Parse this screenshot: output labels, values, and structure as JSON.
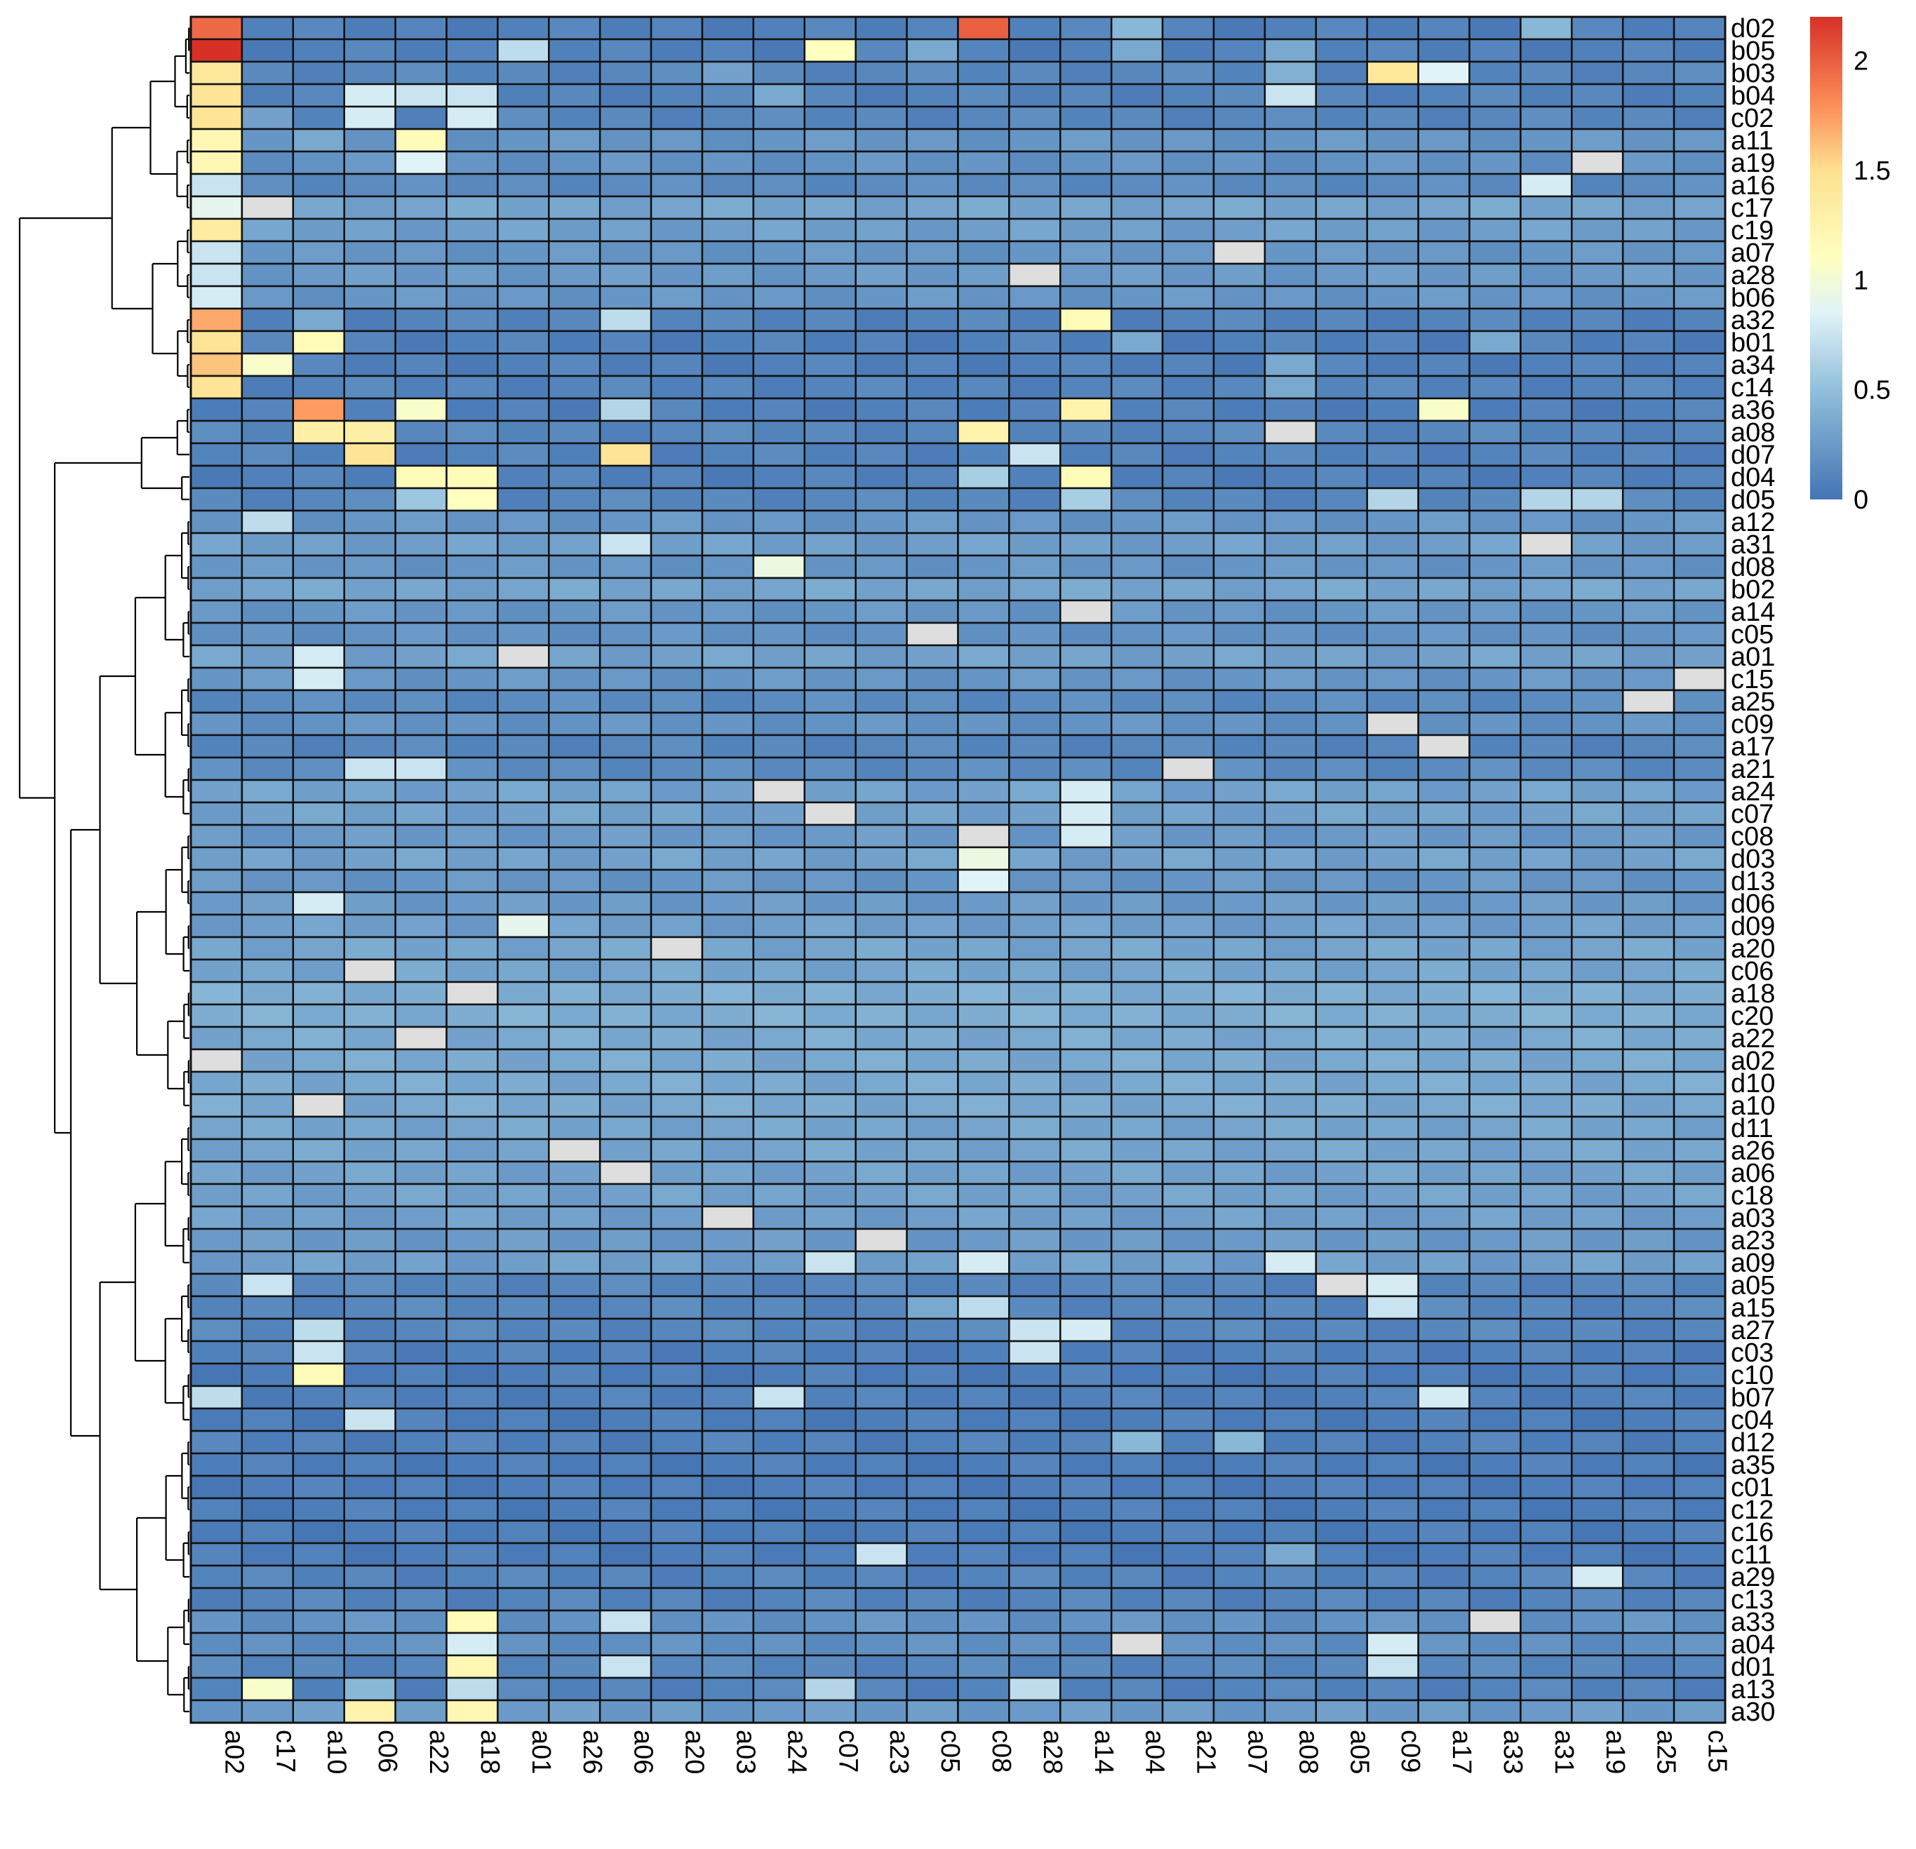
{
  "chart_data": {
    "type": "heatmap",
    "title": "",
    "xlabel": "",
    "ylabel": "",
    "columns": [
      "a02",
      "c17",
      "a10",
      "c06",
      "a22",
      "a18",
      "a01",
      "a26",
      "a06",
      "a20",
      "a03",
      "a24",
      "c07",
      "a23",
      "c05",
      "c08",
      "a28",
      "a14",
      "a04",
      "a21",
      "a07",
      "a08",
      "a05",
      "c09",
      "a17",
      "a33",
      "a31",
      "a19",
      "a25",
      "c15"
    ],
    "rows": [
      "d02",
      "b05",
      "b03",
      "b04",
      "c02",
      "a11",
      "a19",
      "a16",
      "c17",
      "c19",
      "a07",
      "a28",
      "b06",
      "a32",
      "b01",
      "a34",
      "c14",
      "a36",
      "a08",
      "d07",
      "d04",
      "d05",
      "a12",
      "a31",
      "d08",
      "b02",
      "a14",
      "c05",
      "a01",
      "c15",
      "a25",
      "c09",
      "a17",
      "a21",
      "a24",
      "c07",
      "c08",
      "d03",
      "d13",
      "d06",
      "d09",
      "a20",
      "c06",
      "a18",
      "c20",
      "a22",
      "a02",
      "d10",
      "a10",
      "d11",
      "a26",
      "a06",
      "c18",
      "a03",
      "a23",
      "a09",
      "a05",
      "a15",
      "a27",
      "c03",
      "c10",
      "b07",
      "c04",
      "d12",
      "a35",
      "c01",
      "c12",
      "c16",
      "c11",
      "a29",
      "c13",
      "a33",
      "a04",
      "d01",
      "a13",
      "a30"
    ],
    "color_scale": {
      "min": 0,
      "max": 2.2,
      "ticks": [
        "0",
        "0.5",
        "1",
        "1.5",
        "2"
      ],
      "tick_values": [
        0,
        0.5,
        1,
        1.5,
        2
      ],
      "stops": [
        {
          "value": 0.0,
          "color": "#4575b4"
        },
        {
          "value": 0.5,
          "color": "#91bfdb"
        },
        {
          "value": 0.85,
          "color": "#e0f3f8"
        },
        {
          "value": 1.1,
          "color": "#ffffbf"
        },
        {
          "value": 1.5,
          "color": "#fee090"
        },
        {
          "value": 1.8,
          "color": "#fc8d59"
        },
        {
          "value": 2.2,
          "color": "#d73027"
        }
      ],
      "na_color": "#dedede"
    },
    "cluster_groups": [
      {
        "name": "top",
        "rows": [
          "d02",
          "b05",
          "b03",
          "b04",
          "c02",
          "a11",
          "a19",
          "a16",
          "c17",
          "c19",
          "a07",
          "a28",
          "b06",
          "a32",
          "b01",
          "a34",
          "c14"
        ]
      },
      {
        "name": "upper-middle",
        "rows": [
          "a36",
          "a08",
          "d07",
          "d04",
          "d05"
        ]
      },
      {
        "name": "large",
        "rows": [
          "a12",
          "a31",
          "d08",
          "b02",
          "a14",
          "c05",
          "a01",
          "c15",
          "a25",
          "c09",
          "a17",
          "a21",
          "a24",
          "c07",
          "c08",
          "d03",
          "d13",
          "d06",
          "d09",
          "a20",
          "c06",
          "a18",
          "c20",
          "a22",
          "a02",
          "d10",
          "a10",
          "d11",
          "a26",
          "a06",
          "c18",
          "a03",
          "a23",
          "a09",
          "a05",
          "a15",
          "a27",
          "c03",
          "c10",
          "b07",
          "c04",
          "d12",
          "a35",
          "c01",
          "c12",
          "c16",
          "c11",
          "a29",
          "c13",
          "a33",
          "a04",
          "d01",
          "a13",
          "a30"
        ]
      }
    ],
    "baseline": {
      "d02": 0.08,
      "b05": 0.08,
      "b03": 0.12,
      "b04": 0.1,
      "c02": 0.12,
      "a11": 0.22,
      "a19": 0.2,
      "a16": 0.15,
      "c17": 0.32,
      "c19": 0.28,
      "a07": 0.22,
      "a28": 0.25,
      "b06": 0.22,
      "a32": 0.1,
      "b01": 0.08,
      "a34": 0.08,
      "c14": 0.1,
      "a36": 0.08,
      "a08": 0.12,
      "d07": 0.1,
      "d04": 0.08,
      "d05": 0.12,
      "a12": 0.22,
      "a31": 0.28,
      "d08": 0.22,
      "b02": 0.32,
      "a14": 0.22,
      "c05": 0.2,
      "a01": 0.3,
      "c15": 0.22,
      "a25": 0.15,
      "c09": 0.2,
      "a17": 0.12,
      "a21": 0.15,
      "a24": 0.3,
      "c07": 0.3,
      "c08": 0.25,
      "d03": 0.3,
      "d13": 0.22,
      "d06": 0.25,
      "d09": 0.28,
      "a20": 0.32,
      "c06": 0.32,
      "a18": 0.38,
      "c20": 0.38,
      "a22": 0.35,
      "a02": 0.35,
      "d10": 0.35,
      "a10": 0.35,
      "d11": 0.32,
      "a26": 0.32,
      "a06": 0.3,
      "c18": 0.3,
      "a03": 0.28,
      "a23": 0.25,
      "a09": 0.28,
      "a05": 0.12,
      "a15": 0.12,
      "a27": 0.12,
      "c03": 0.08,
      "c10": 0.06,
      "b07": 0.08,
      "c04": 0.06,
      "d12": 0.08,
      "a35": 0.06,
      "c01": 0.06,
      "c12": 0.06,
      "c16": 0.06,
      "c11": 0.06,
      "a29": 0.1,
      "c13": 0.1,
      "a33": 0.2,
      "a04": 0.18,
      "d01": 0.12,
      "a13": 0.1,
      "a30": 0.25
    },
    "cells": [
      {
        "row": "d02",
        "col": "a02",
        "value": 1.95
      },
      {
        "row": "d02",
        "col": "c08",
        "value": 2.0
      },
      {
        "row": "d02",
        "col": "a04",
        "value": 0.45
      },
      {
        "row": "d02",
        "col": "a31",
        "value": 0.45
      },
      {
        "row": "b05",
        "col": "a02",
        "value": 2.2
      },
      {
        "row": "b05",
        "col": "a01",
        "value": 0.7
      },
      {
        "row": "b05",
        "col": "c07",
        "value": 1.1
      },
      {
        "row": "b05",
        "col": "c05",
        "value": 0.35
      },
      {
        "row": "b05",
        "col": "a04",
        "value": 0.35
      },
      {
        "row": "b05",
        "col": "a08",
        "value": 0.35
      },
      {
        "row": "b03",
        "col": "a02",
        "value": 1.4
      },
      {
        "row": "b03",
        "col": "a03",
        "value": 0.3
      },
      {
        "row": "b03",
        "col": "a08",
        "value": 0.4
      },
      {
        "row": "b03",
        "col": "c09",
        "value": 1.4
      },
      {
        "row": "b03",
        "col": "a17",
        "value": 0.85
      },
      {
        "row": "b04",
        "col": "a02",
        "value": 1.45
      },
      {
        "row": "b04",
        "col": "c06",
        "value": 0.8
      },
      {
        "row": "b04",
        "col": "a22",
        "value": 0.75
      },
      {
        "row": "b04",
        "col": "a18",
        "value": 0.75
      },
      {
        "row": "b04",
        "col": "a24",
        "value": 0.35
      },
      {
        "row": "b04",
        "col": "a08",
        "value": 0.75
      },
      {
        "row": "c02",
        "col": "a02",
        "value": 1.45
      },
      {
        "row": "c02",
        "col": "c06",
        "value": 0.8
      },
      {
        "row": "c02",
        "col": "a18",
        "value": 0.8
      },
      {
        "row": "c02",
        "col": "c17",
        "value": 0.3
      },
      {
        "row": "a11",
        "col": "a02",
        "value": 1.2
      },
      {
        "row": "a11",
        "col": "a22",
        "value": 1.15
      },
      {
        "row": "a11",
        "col": "a10",
        "value": 0.35
      },
      {
        "row": "a19",
        "col": "a02",
        "value": 1.2
      },
      {
        "row": "a19",
        "col": "a22",
        "value": 0.85
      },
      {
        "row": "a19",
        "col": "a19",
        "value": null
      },
      {
        "row": "a16",
        "col": "a02",
        "value": 0.75
      },
      {
        "row": "a16",
        "col": "a31",
        "value": 0.8
      },
      {
        "row": "c17",
        "col": "a02",
        "value": 0.9
      },
      {
        "row": "c17",
        "col": "c17",
        "value": null
      },
      {
        "row": "c19",
        "col": "a02",
        "value": 1.35
      },
      {
        "row": "a07",
        "col": "a02",
        "value": 0.75
      },
      {
        "row": "a07",
        "col": "a07",
        "value": null
      },
      {
        "row": "a28",
        "col": "a02",
        "value": 0.75
      },
      {
        "row": "a28",
        "col": "a28",
        "value": null
      },
      {
        "row": "b06",
        "col": "a02",
        "value": 0.8
      },
      {
        "row": "a32",
        "col": "a02",
        "value": 1.7
      },
      {
        "row": "a32",
        "col": "a06",
        "value": 0.7
      },
      {
        "row": "a32",
        "col": "a14",
        "value": 1.15
      },
      {
        "row": "a32",
        "col": "a10",
        "value": 0.35
      },
      {
        "row": "b01",
        "col": "a02",
        "value": 1.45
      },
      {
        "row": "b01",
        "col": "a10",
        "value": 1.15
      },
      {
        "row": "b01",
        "col": "a04",
        "value": 0.35
      },
      {
        "row": "b01",
        "col": "a33",
        "value": 0.35
      },
      {
        "row": "a34",
        "col": "a02",
        "value": 1.6
      },
      {
        "row": "a34",
        "col": "c17",
        "value": 1.05
      },
      {
        "row": "a34",
        "col": "a08",
        "value": 0.35
      },
      {
        "row": "c14",
        "col": "a02",
        "value": 1.45
      },
      {
        "row": "c14",
        "col": "a08",
        "value": 0.35
      },
      {
        "row": "a36",
        "col": "a10",
        "value": 1.75
      },
      {
        "row": "a36",
        "col": "a22",
        "value": 1.05
      },
      {
        "row": "a36",
        "col": "a06",
        "value": 0.65
      },
      {
        "row": "a36",
        "col": "a14",
        "value": 1.25
      },
      {
        "row": "a36",
        "col": "a17",
        "value": 1.05
      },
      {
        "row": "a08",
        "col": "a10",
        "value": 1.3
      },
      {
        "row": "a08",
        "col": "c06",
        "value": 1.3
      },
      {
        "row": "a08",
        "col": "c08",
        "value": 1.25
      },
      {
        "row": "a08",
        "col": "a08",
        "value": null
      },
      {
        "row": "d07",
        "col": "c06",
        "value": 1.45
      },
      {
        "row": "d07",
        "col": "a06",
        "value": 1.45
      },
      {
        "row": "d07",
        "col": "a28",
        "value": 0.75
      },
      {
        "row": "d04",
        "col": "a22",
        "value": 1.15
      },
      {
        "row": "d04",
        "col": "a18",
        "value": 1.15
      },
      {
        "row": "d04",
        "col": "a14",
        "value": 1.15
      },
      {
        "row": "d04",
        "col": "c08",
        "value": 0.6
      },
      {
        "row": "d05",
        "col": "a18",
        "value": 1.1
      },
      {
        "row": "d05",
        "col": "a22",
        "value": 0.55
      },
      {
        "row": "d05",
        "col": "a14",
        "value": 0.6
      },
      {
        "row": "d05",
        "col": "c09",
        "value": 0.65
      },
      {
        "row": "d05",
        "col": "a31",
        "value": 0.65
      },
      {
        "row": "d05",
        "col": "a19",
        "value": 0.65
      },
      {
        "row": "a12",
        "col": "c17",
        "value": 0.7
      },
      {
        "row": "a31",
        "col": "a06",
        "value": 0.75
      },
      {
        "row": "a31",
        "col": "a31",
        "value": null
      },
      {
        "row": "d08",
        "col": "a24",
        "value": 0.95
      },
      {
        "row": "a14",
        "col": "a14",
        "value": null
      },
      {
        "row": "c05",
        "col": "c05",
        "value": null
      },
      {
        "row": "a01",
        "col": "a10",
        "value": 0.8
      },
      {
        "row": "a01",
        "col": "a01",
        "value": null
      },
      {
        "row": "c15",
        "col": "a10",
        "value": 0.8
      },
      {
        "row": "c15",
        "col": "c15",
        "value": null
      },
      {
        "row": "a25",
        "col": "a25",
        "value": null
      },
      {
        "row": "c09",
        "col": "c09",
        "value": null
      },
      {
        "row": "a17",
        "col": "a17",
        "value": null
      },
      {
        "row": "a21",
        "col": "c06",
        "value": 0.75
      },
      {
        "row": "a21",
        "col": "a22",
        "value": 0.75
      },
      {
        "row": "a21",
        "col": "a21",
        "value": null
      },
      {
        "row": "a24",
        "col": "a24",
        "value": null
      },
      {
        "row": "a24",
        "col": "a14",
        "value": 0.8
      },
      {
        "row": "c07",
        "col": "c07",
        "value": null
      },
      {
        "row": "c07",
        "col": "a14",
        "value": 0.8
      },
      {
        "row": "c08",
        "col": "c08",
        "value": null
      },
      {
        "row": "c08",
        "col": "a14",
        "value": 0.8
      },
      {
        "row": "d03",
        "col": "c08",
        "value": 0.95
      },
      {
        "row": "d13",
        "col": "c08",
        "value": 0.85
      },
      {
        "row": "d06",
        "col": "a10",
        "value": 0.8
      },
      {
        "row": "d09",
        "col": "a01",
        "value": 0.9
      },
      {
        "row": "a20",
        "col": "a20",
        "value": null
      },
      {
        "row": "c06",
        "col": "c06",
        "value": null
      },
      {
        "row": "a18",
        "col": "a18",
        "value": null
      },
      {
        "row": "a22",
        "col": "a22",
        "value": null
      },
      {
        "row": "a02",
        "col": "a02",
        "value": null
      },
      {
        "row": "a10",
        "col": "a10",
        "value": null
      },
      {
        "row": "a26",
        "col": "a26",
        "value": null
      },
      {
        "row": "a06",
        "col": "a06",
        "value": null
      },
      {
        "row": "a03",
        "col": "a03",
        "value": null
      },
      {
        "row": "a23",
        "col": "a23",
        "value": null
      },
      {
        "row": "a09",
        "col": "c07",
        "value": 0.75
      },
      {
        "row": "a09",
        "col": "c08",
        "value": 0.8
      },
      {
        "row": "a09",
        "col": "a08",
        "value": 0.8
      },
      {
        "row": "a05",
        "col": "c17",
        "value": 0.75
      },
      {
        "row": "a05",
        "col": "a05",
        "value": null
      },
      {
        "row": "a05",
        "col": "c09",
        "value": 0.8
      },
      {
        "row": "a15",
        "col": "c08",
        "value": 0.7
      },
      {
        "row": "a15",
        "col": "c09",
        "value": 0.75
      },
      {
        "row": "a15",
        "col": "c05",
        "value": 0.35
      },
      {
        "row": "a27",
        "col": "a10",
        "value": 0.7
      },
      {
        "row": "a27",
        "col": "a28",
        "value": 0.75
      },
      {
        "row": "a27",
        "col": "a14",
        "value": 0.8
      },
      {
        "row": "c03",
        "col": "a10",
        "value": 0.75
      },
      {
        "row": "c03",
        "col": "a28",
        "value": 0.75
      },
      {
        "row": "c10",
        "col": "a10",
        "value": 1.15
      },
      {
        "row": "b07",
        "col": "a02",
        "value": 0.7
      },
      {
        "row": "b07",
        "col": "a24",
        "value": 0.75
      },
      {
        "row": "b07",
        "col": "a17",
        "value": 0.8
      },
      {
        "row": "c04",
        "col": "c06",
        "value": 0.75
      },
      {
        "row": "d12",
        "col": "a04",
        "value": 0.45
      },
      {
        "row": "d12",
        "col": "a07",
        "value": 0.45
      },
      {
        "row": "c11",
        "col": "a23",
        "value": 0.75
      },
      {
        "row": "c11",
        "col": "a08",
        "value": 0.35
      },
      {
        "row": "a29",
        "col": "a19",
        "value": 0.8
      },
      {
        "row": "a33",
        "col": "a18",
        "value": 1.15
      },
      {
        "row": "a33",
        "col": "a06",
        "value": 0.75
      },
      {
        "row": "a33",
        "col": "a33",
        "value": null
      },
      {
        "row": "a04",
        "col": "a18",
        "value": 0.8
      },
      {
        "row": "a04",
        "col": "a04",
        "value": null
      },
      {
        "row": "a04",
        "col": "c09",
        "value": 0.8
      },
      {
        "row": "d01",
        "col": "a18",
        "value": 1.2
      },
      {
        "row": "d01",
        "col": "a06",
        "value": 0.75
      },
      {
        "row": "d01",
        "col": "c09",
        "value": 0.75
      },
      {
        "row": "a13",
        "col": "c17",
        "value": 1.05
      },
      {
        "row": "a13",
        "col": "c06",
        "value": 0.45
      },
      {
        "row": "a13",
        "col": "a18",
        "value": 0.7
      },
      {
        "row": "a13",
        "col": "c07",
        "value": 0.65
      },
      {
        "row": "a13",
        "col": "a28",
        "value": 0.7
      },
      {
        "row": "a30",
        "col": "c06",
        "value": 1.25
      },
      {
        "row": "a30",
        "col": "a18",
        "value": 1.2
      }
    ]
  }
}
